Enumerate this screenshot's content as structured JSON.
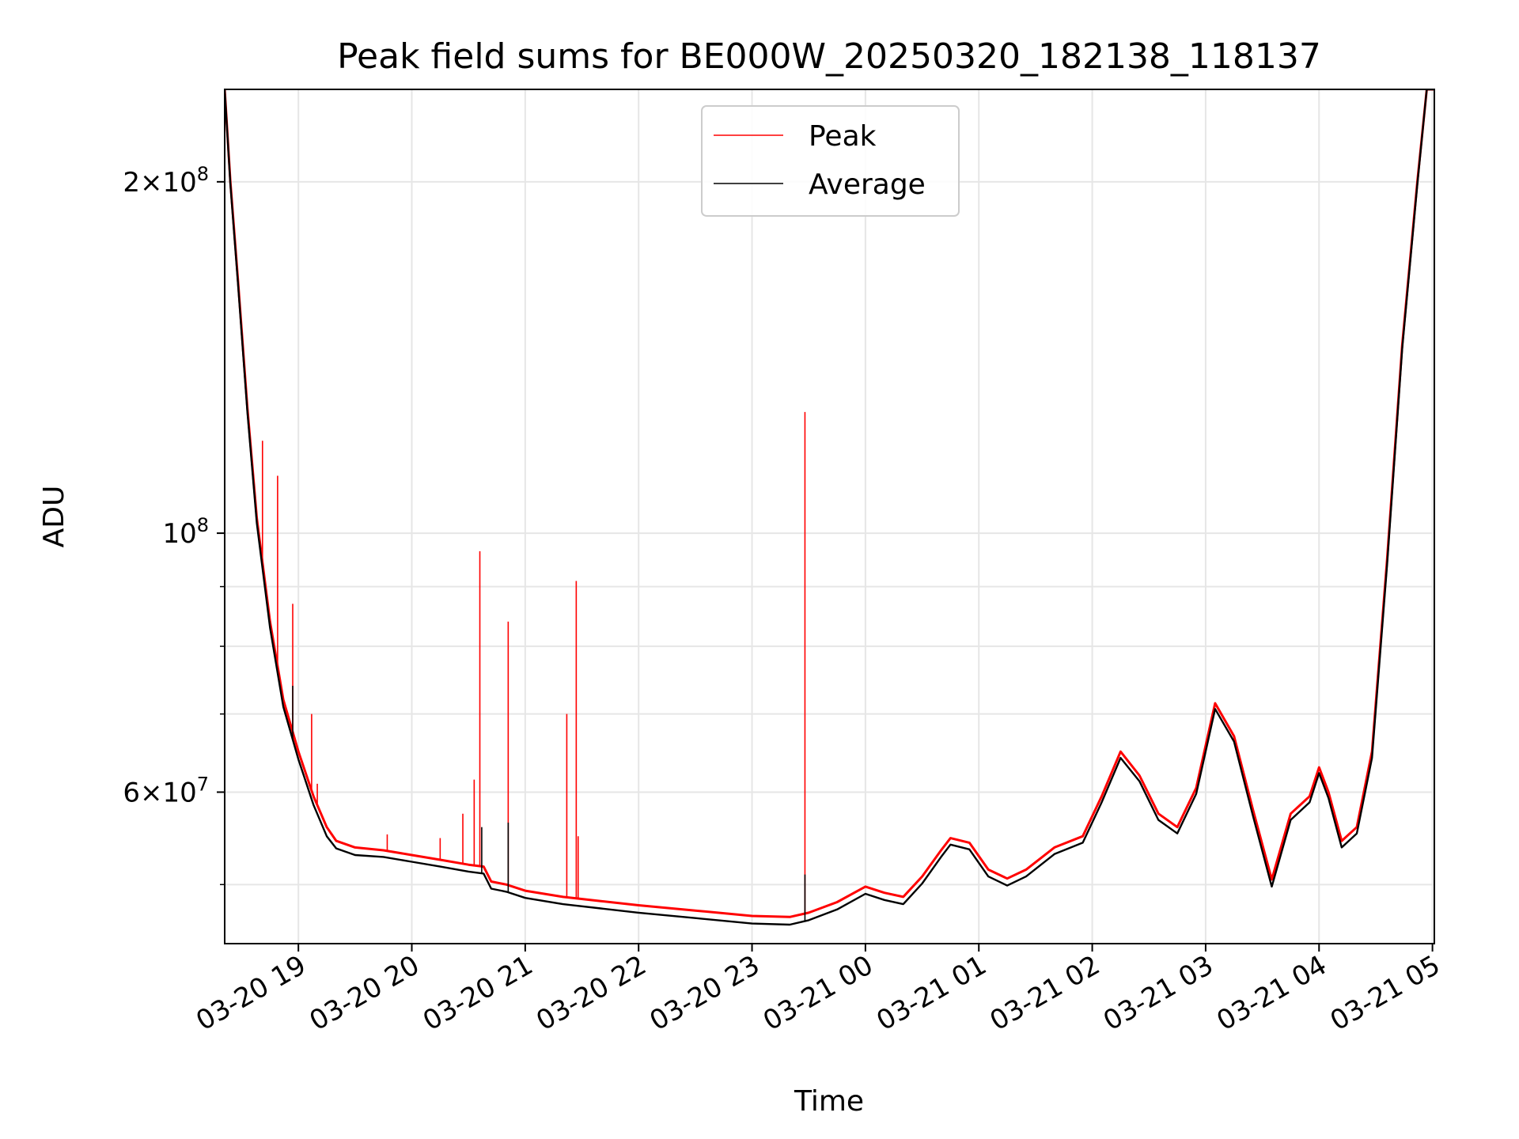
{
  "chart_data": {
    "type": "line",
    "title": "Peak field sums for BE000W_20250320_182138_118137",
    "xlabel": "Time",
    "ylabel": "ADU",
    "yscale": "log",
    "grid": true,
    "legend_position": "top-center",
    "xlim": [
      "2025-03-20 18:21",
      "2025-03-21 05:01"
    ],
    "ylim": [
      44500000,
      240000000
    ],
    "x_ticks": [
      {
        "t": "2025-03-20 19:00",
        "label": "03-20 19"
      },
      {
        "t": "2025-03-20 20:00",
        "label": "03-20 20"
      },
      {
        "t": "2025-03-20 21:00",
        "label": "03-20 21"
      },
      {
        "t": "2025-03-20 22:00",
        "label": "03-20 22"
      },
      {
        "t": "2025-03-20 23:00",
        "label": "03-20 23"
      },
      {
        "t": "2025-03-21 00:00",
        "label": "03-21 00"
      },
      {
        "t": "2025-03-21 01:00",
        "label": "03-21 01"
      },
      {
        "t": "2025-03-21 02:00",
        "label": "03-21 02"
      },
      {
        "t": "2025-03-21 03:00",
        "label": "03-21 03"
      },
      {
        "t": "2025-03-21 04:00",
        "label": "03-21 04"
      },
      {
        "t": "2025-03-21 05:00",
        "label": "03-21 05"
      }
    ],
    "y_major_ticks": [
      {
        "value": 60000000,
        "mantissa": "6",
        "exponent": "7"
      },
      {
        "value": 100000000,
        "mantissa": "",
        "exponent": "8"
      },
      {
        "value": 200000000,
        "mantissa": "2",
        "exponent": "8"
      }
    ],
    "y_minor_ticks": [
      50000000,
      70000000,
      80000000,
      90000000
    ],
    "series": [
      {
        "name": "Peak",
        "color": "#ff0000",
        "points": [
          [
            "2025-03-20 18:21",
            240000000
          ],
          [
            "2025-03-20 18:24",
            200000000
          ],
          [
            "2025-03-20 18:28",
            165000000
          ],
          [
            "2025-03-20 18:33",
            128000000
          ],
          [
            "2025-03-20 18:38",
            103000000
          ],
          [
            "2025-03-20 18:45",
            84000000
          ],
          [
            "2025-03-20 18:52",
            72000000
          ],
          [
            "2025-03-20 19:00",
            65000000
          ],
          [
            "2025-03-20 19:08",
            59500000
          ],
          [
            "2025-03-20 19:15",
            56000000
          ],
          [
            "2025-03-20 19:20",
            54500000
          ],
          [
            "2025-03-20 19:30",
            53800000
          ],
          [
            "2025-03-20 19:45",
            53500000
          ],
          [
            "2025-03-20 20:00",
            53000000
          ],
          [
            "2025-03-20 20:15",
            52500000
          ],
          [
            "2025-03-20 20:30",
            52000000
          ],
          [
            "2025-03-20 20:38",
            51800000
          ],
          [
            "2025-03-20 20:42",
            50300000
          ],
          [
            "2025-03-20 20:50",
            50000000
          ],
          [
            "2025-03-20 21:00",
            49400000
          ],
          [
            "2025-03-20 21:20",
            48800000
          ],
          [
            "2025-03-20 21:40",
            48400000
          ],
          [
            "2025-03-20 22:00",
            48000000
          ],
          [
            "2025-03-20 22:30",
            47500000
          ],
          [
            "2025-03-20 23:00",
            47000000
          ],
          [
            "2025-03-20 23:20",
            46900000
          ],
          [
            "2025-03-20 23:30",
            47300000
          ],
          [
            "2025-03-20 23:45",
            48300000
          ],
          [
            "2025-03-21 00:00",
            49800000
          ],
          [
            "2025-03-21 00:10",
            49200000
          ],
          [
            "2025-03-21 00:20",
            48800000
          ],
          [
            "2025-03-21 00:30",
            50800000
          ],
          [
            "2025-03-21 00:40",
            53500000
          ],
          [
            "2025-03-21 00:45",
            54800000
          ],
          [
            "2025-03-21 00:55",
            54300000
          ],
          [
            "2025-03-21 01:05",
            51500000
          ],
          [
            "2025-03-21 01:15",
            50600000
          ],
          [
            "2025-03-21 01:25",
            51500000
          ],
          [
            "2025-03-21 01:40",
            53800000
          ],
          [
            "2025-03-21 01:55",
            55000000
          ],
          [
            "2025-03-21 02:05",
            59500000
          ],
          [
            "2025-03-21 02:15",
            65000000
          ],
          [
            "2025-03-21 02:25",
            62000000
          ],
          [
            "2025-03-21 02:35",
            57500000
          ],
          [
            "2025-03-21 02:45",
            56000000
          ],
          [
            "2025-03-21 02:55",
            60500000
          ],
          [
            "2025-03-21 03:05",
            71500000
          ],
          [
            "2025-03-21 03:15",
            67000000
          ],
          [
            "2025-03-21 03:25",
            58000000
          ],
          [
            "2025-03-21 03:35",
            50500000
          ],
          [
            "2025-03-21 03:45",
            57500000
          ],
          [
            "2025-03-21 03:55",
            59500000
          ],
          [
            "2025-03-21 04:00",
            63000000
          ],
          [
            "2025-03-21 04:05",
            60000000
          ],
          [
            "2025-03-21 04:12",
            54500000
          ],
          [
            "2025-03-21 04:20",
            56000000
          ],
          [
            "2025-03-21 04:28",
            65000000
          ],
          [
            "2025-03-21 04:36",
            95000000
          ],
          [
            "2025-03-21 04:44",
            145000000
          ],
          [
            "2025-03-21 04:52",
            200000000
          ],
          [
            "2025-03-21 04:57",
            240000000
          ],
          [
            "2025-03-21 05:01",
            240000000
          ]
        ],
        "spikes": [
          [
            "2025-03-20 18:41",
            120000000
          ],
          [
            "2025-03-20 18:49",
            112000000
          ],
          [
            "2025-03-20 18:57",
            87000000
          ],
          [
            "2025-03-20 19:07",
            70000000
          ],
          [
            "2025-03-20 19:10",
            61000000
          ],
          [
            "2025-03-20 19:47",
            55200000
          ],
          [
            "2025-03-20 20:15",
            54800000
          ],
          [
            "2025-03-20 20:27",
            57500000
          ],
          [
            "2025-03-20 20:33",
            61500000
          ],
          [
            "2025-03-20 20:36",
            96500000
          ],
          [
            "2025-03-20 20:51",
            84000000
          ],
          [
            "2025-03-20 21:22",
            70000000
          ],
          [
            "2025-03-20 21:27",
            91000000
          ],
          [
            "2025-03-20 21:28",
            55000000
          ],
          [
            "2025-03-20 23:28",
            127000000
          ]
        ]
      },
      {
        "name": "Average",
        "color": "#000000",
        "points": [
          [
            "2025-03-20 18:21",
            240000000
          ],
          [
            "2025-03-20 18:24",
            199000000
          ],
          [
            "2025-03-20 18:28",
            164000000
          ],
          [
            "2025-03-20 18:33",
            127000000
          ],
          [
            "2025-03-20 18:38",
            102000000
          ],
          [
            "2025-03-20 18:45",
            83000000
          ],
          [
            "2025-03-20 18:52",
            71000000
          ],
          [
            "2025-03-20 19:00",
            64000000
          ],
          [
            "2025-03-20 19:08",
            58500000
          ],
          [
            "2025-03-20 19:15",
            55000000
          ],
          [
            "2025-03-20 19:20",
            53700000
          ],
          [
            "2025-03-20 19:30",
            53000000
          ],
          [
            "2025-03-20 19:45",
            52800000
          ],
          [
            "2025-03-20 20:00",
            52300000
          ],
          [
            "2025-03-20 20:15",
            51800000
          ],
          [
            "2025-03-20 20:30",
            51300000
          ],
          [
            "2025-03-20 20:38",
            51100000
          ],
          [
            "2025-03-20 20:42",
            49600000
          ],
          [
            "2025-03-20 20:50",
            49300000
          ],
          [
            "2025-03-20 21:00",
            48700000
          ],
          [
            "2025-03-20 21:20",
            48100000
          ],
          [
            "2025-03-20 21:40",
            47700000
          ],
          [
            "2025-03-20 22:00",
            47300000
          ],
          [
            "2025-03-20 22:30",
            46800000
          ],
          [
            "2025-03-20 23:00",
            46300000
          ],
          [
            "2025-03-20 23:20",
            46200000
          ],
          [
            "2025-03-20 23:30",
            46600000
          ],
          [
            "2025-03-20 23:45",
            47600000
          ],
          [
            "2025-03-21 00:00",
            49100000
          ],
          [
            "2025-03-21 00:10",
            48500000
          ],
          [
            "2025-03-21 00:20",
            48100000
          ],
          [
            "2025-03-21 00:30",
            50100000
          ],
          [
            "2025-03-21 00:40",
            52800000
          ],
          [
            "2025-03-21 00:45",
            54100000
          ],
          [
            "2025-03-21 00:55",
            53600000
          ],
          [
            "2025-03-21 01:05",
            50800000
          ],
          [
            "2025-03-21 01:15",
            49900000
          ],
          [
            "2025-03-21 01:25",
            50800000
          ],
          [
            "2025-03-21 01:40",
            53100000
          ],
          [
            "2025-03-21 01:55",
            54300000
          ],
          [
            "2025-03-21 02:05",
            58800000
          ],
          [
            "2025-03-21 02:15",
            64200000
          ],
          [
            "2025-03-21 02:25",
            61300000
          ],
          [
            "2025-03-21 02:35",
            56800000
          ],
          [
            "2025-03-21 02:45",
            55300000
          ],
          [
            "2025-03-21 02:55",
            59800000
          ],
          [
            "2025-03-21 03:05",
            70700000
          ],
          [
            "2025-03-21 03:15",
            66300000
          ],
          [
            "2025-03-21 03:25",
            57300000
          ],
          [
            "2025-03-21 03:35",
            49800000
          ],
          [
            "2025-03-21 03:45",
            56800000
          ],
          [
            "2025-03-21 03:55",
            58800000
          ],
          [
            "2025-03-21 04:00",
            62300000
          ],
          [
            "2025-03-21 04:05",
            59300000
          ],
          [
            "2025-03-21 04:12",
            53800000
          ],
          [
            "2025-03-21 04:20",
            55300000
          ],
          [
            "2025-03-21 04:28",
            64200000
          ],
          [
            "2025-03-21 04:36",
            94000000
          ],
          [
            "2025-03-21 04:44",
            144000000
          ],
          [
            "2025-03-21 04:52",
            199000000
          ],
          [
            "2025-03-21 04:57",
            240000000
          ],
          [
            "2025-03-21 05:01",
            240000000
          ]
        ],
        "spikes": [
          [
            "2025-03-20 18:57",
            74000000
          ],
          [
            "2025-03-20 20:37",
            56000000
          ],
          [
            "2025-03-20 20:51",
            56500000
          ],
          [
            "2025-03-20 23:28",
            51000000
          ]
        ]
      }
    ]
  }
}
